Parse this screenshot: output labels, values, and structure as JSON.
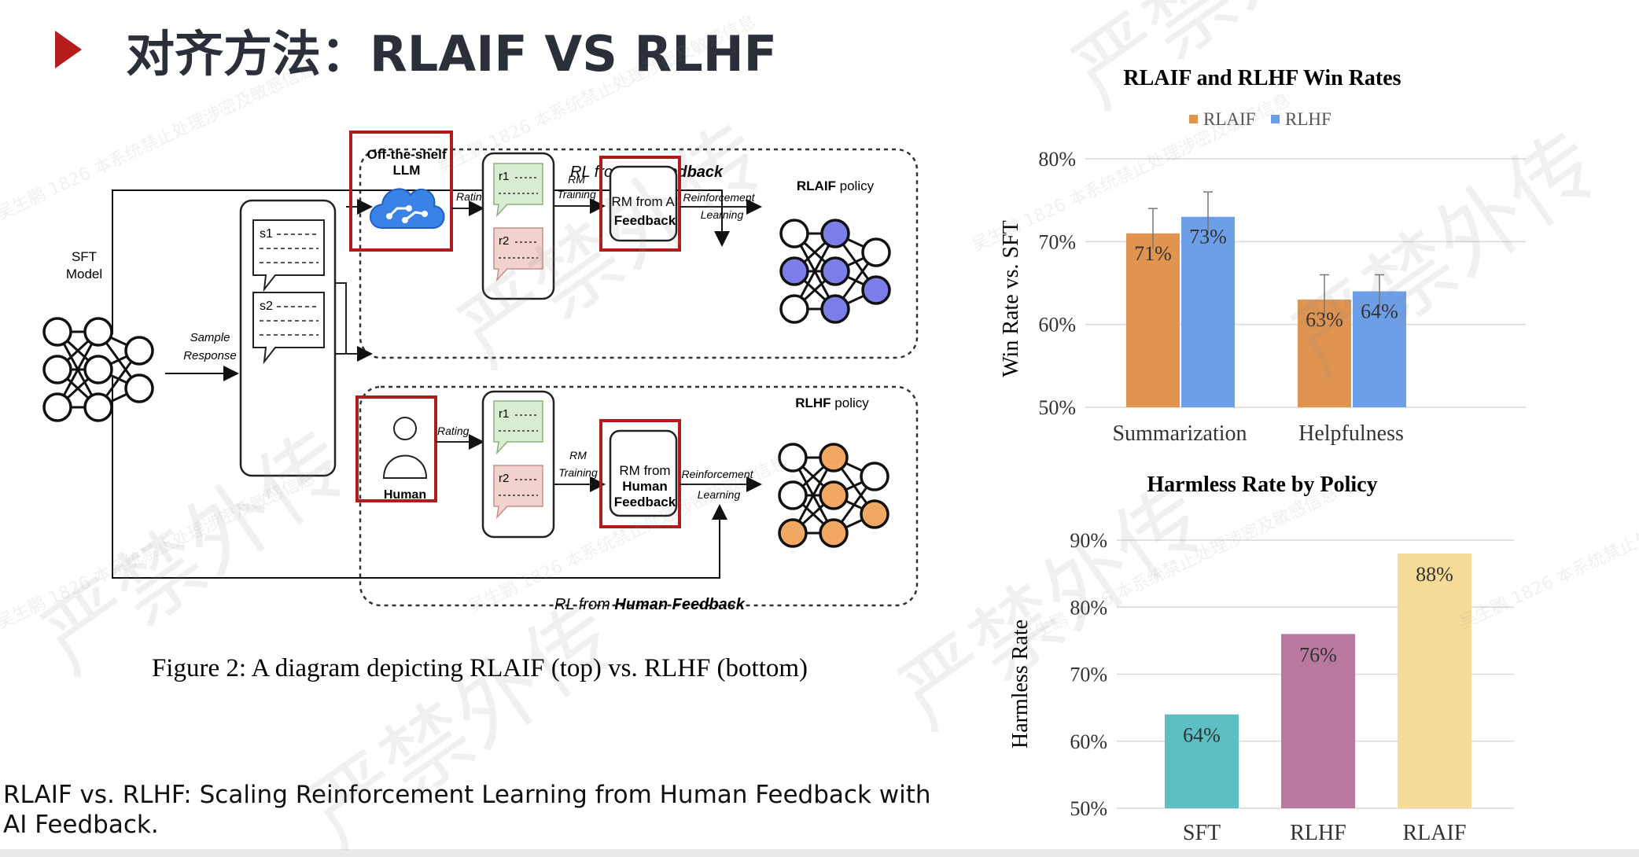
{
  "slide": {
    "title": "对齐方法：RLAIF VS RLHF",
    "citation": "RLAIF vs. RLHF: Scaling Reinforcement Learning from Human Feedback with AI Feedback."
  },
  "diagram": {
    "rl_from_ai_feedback_prefix": "RL from ",
    "rl_from_ai_feedback_bold": "AI Feedback",
    "rl_from_human_feedback_prefix": "RL from ",
    "rl_from_human_feedback_bold": "Human Feedback",
    "sft_model_line1": "SFT",
    "sft_model_line2": "Model",
    "sample_line1": "Sample",
    "sample_line2": "Response",
    "s1": "s1",
    "s2": "s2",
    "llm_line1": "Off-the-shelf",
    "llm_line2": "LLM",
    "human_label": "Human",
    "rating_top": "Rating",
    "rating_bottom": "Rating",
    "r1_top": "r1",
    "r2_top": "r2",
    "r1_bottom": "r1",
    "r2_bottom": "r2",
    "rm_training_top_1": "RM",
    "rm_training_top_2": "Training",
    "rm_training_bottom_1": "RM",
    "rm_training_bottom_2": "Training",
    "rm_ai_1": "RM from AI",
    "rm_ai_2": "Feedback",
    "rm_human_1": "RM from",
    "rm_human_2": "Human",
    "rm_human_3": "Feedback",
    "rl_top_1": "Reinforcement",
    "rl_top_2": "Learning",
    "rl_bottom_1": "Reinforcement",
    "rl_bottom_2": "Learning",
    "rlaif_policy_bold": "RLAIF",
    "rlaif_policy_rest": " policy",
    "rlhf_policy_bold": "RLHF",
    "rlhf_policy_rest": " policy",
    "caption": "Figure 2: A diagram depicting RLAIF (top) vs. RLHF (bottom)",
    "colors": {
      "highlight_box": "#b01c1c",
      "rlaif_node": "#7b7ee8",
      "rlhf_node": "#f0a862",
      "green_note": "#d8ecd2",
      "red_note": "#f2d2cf",
      "llm_cloud": "#3b82e6"
    }
  },
  "chart_data": [
    {
      "type": "bar",
      "title": "RLAIF and RLHF Win Rates",
      "ylabel": "Win Rate vs. SFT",
      "xlabel": "",
      "ylim": [
        50,
        80
      ],
      "yticks": [
        "50%",
        "60%",
        "70%",
        "80%"
      ],
      "categories": [
        "Summarization",
        "Helpfulness"
      ],
      "series": [
        {
          "name": "RLAIF",
          "values": [
            71,
            63
          ],
          "labels": [
            "71%",
            "63%"
          ],
          "color": "#e0944f"
        },
        {
          "name": "RLHF",
          "values": [
            73,
            64
          ],
          "labels": [
            "73%",
            "64%"
          ],
          "color": "#6d9ee8"
        }
      ],
      "error_bar_top": [
        [
          74,
          66
        ],
        [
          76,
          66
        ]
      ],
      "legend": "top-left",
      "grid": true
    },
    {
      "type": "bar",
      "title": "Harmless Rate by Policy",
      "ylabel": "Harmless Rate",
      "xlabel": "",
      "ylim": [
        50,
        90
      ],
      "yticks": [
        "50%",
        "60%",
        "70%",
        "80%",
        "90%"
      ],
      "categories": [
        "SFT",
        "RLHF",
        "RLAIF"
      ],
      "values": [
        64,
        76,
        88
      ],
      "labels": [
        "64%",
        "76%",
        "88%"
      ],
      "colors": [
        "#5bbfc4",
        "#b9789e",
        "#f7dc97"
      ],
      "grid": true
    }
  ],
  "watermark": {
    "text_big": "严禁外传",
    "text_small": "吴生鹏 1826 本系统禁止处理涉密及敏感信息"
  }
}
